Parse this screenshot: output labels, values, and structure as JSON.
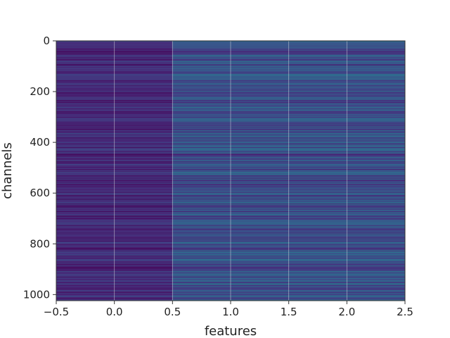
{
  "chart_data": {
    "type": "heatmap",
    "title": "",
    "xlabel": "features",
    "ylabel": "channels",
    "xlim": [
      -0.5,
      2.5
    ],
    "ylim": [
      1024,
      0
    ],
    "y_inverted": true,
    "xticks": [
      -0.5,
      0.0,
      0.5,
      1.0,
      1.5,
      2.0,
      2.5
    ],
    "xtick_labels": [
      "−0.5",
      "0.0",
      "0.5",
      "1.0",
      "1.5",
      "2.0",
      "2.5"
    ],
    "yticks": [
      0,
      200,
      400,
      600,
      800,
      1000
    ],
    "ytick_labels": [
      "0",
      "200",
      "400",
      "600",
      "800",
      "1000"
    ],
    "grid": true,
    "colormap": "viridis",
    "columns": 3,
    "rows": 1024,
    "column_level": [
      0.12,
      0.24,
      0.24
    ],
    "highlight_rows": [
      {
        "row": 522,
        "value": 0.85,
        "columns": [
          1,
          2
        ]
      },
      {
        "row": 440,
        "value": 0.5,
        "columns": [
          1,
          2
        ]
      },
      {
        "row": 470,
        "value": 0.45,
        "columns": [
          1,
          2
        ]
      },
      {
        "row": 755,
        "value": 0.45,
        "columns": [
          1,
          2
        ]
      },
      {
        "row": 960,
        "value": 0.45,
        "columns": [
          1,
          2
        ]
      }
    ]
  }
}
